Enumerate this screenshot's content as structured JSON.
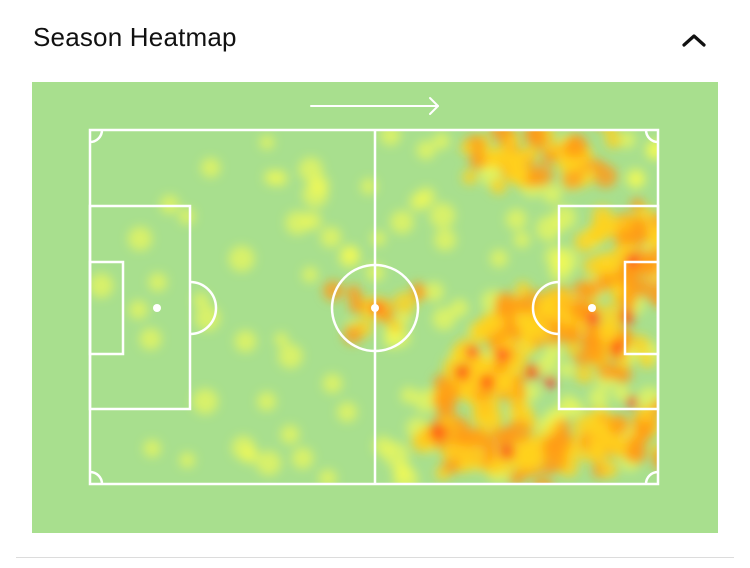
{
  "header": {
    "title": "Season Heatmap",
    "collapse_icon": "chevron-up-icon"
  },
  "heatmap": {
    "pitch_color": "#a8df8e",
    "line_color": "#ffffff",
    "attack_direction_icon": "arrow-right-icon",
    "heat_colors": [
      "#ffff4a",
      "#ffd21e",
      "#ff9a18",
      "#ff4a14",
      "#ff1e28"
    ]
  }
}
